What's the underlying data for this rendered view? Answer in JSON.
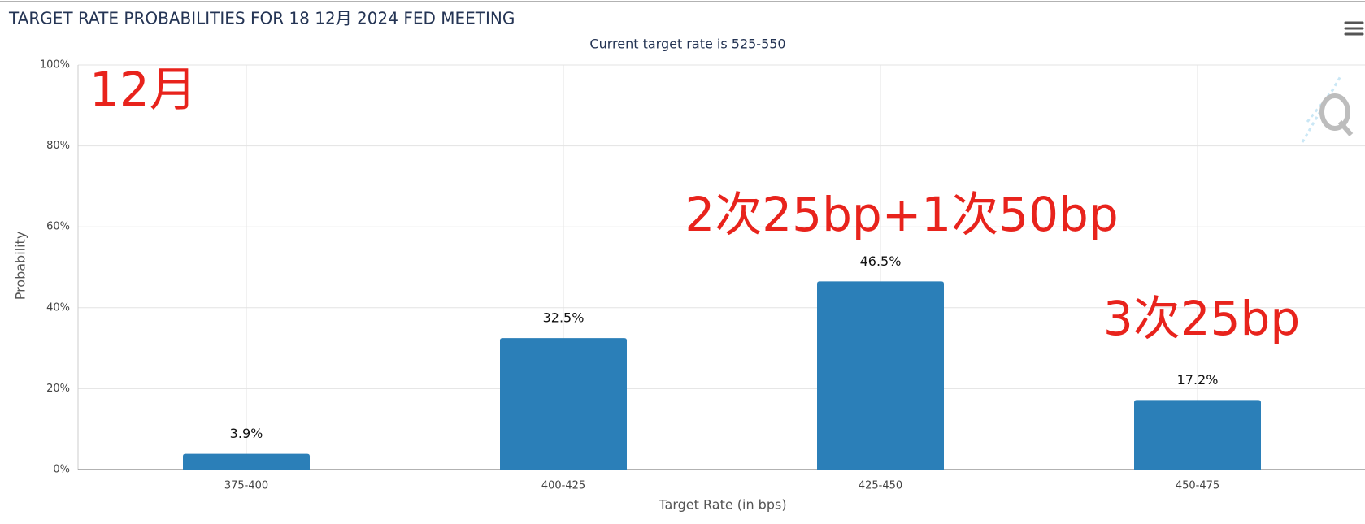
{
  "chart_data": {
    "type": "bar",
    "title": "TARGET RATE PROBABILITIES FOR 18 12月 2024 FED MEETING",
    "subtitle": "Current target rate is 525-550",
    "x_label": "Target Rate (in bps)",
    "y_label": "Probability",
    "categories": [
      "375-400",
      "400-425",
      "425-450",
      "450-475"
    ],
    "values": [
      3.9,
      32.5,
      46.5,
      17.2
    ],
    "value_labels": [
      "3.9%",
      "32.5%",
      "46.5%",
      "17.2%"
    ],
    "color": "#2b7fb8",
    "ylim": [
      0,
      100
    ],
    "yticks": [
      {
        "value": 0,
        "label": "0%"
      },
      {
        "value": 20,
        "label": "20%"
      },
      {
        "value": 40,
        "label": "40%"
      },
      {
        "value": 60,
        "label": "60%"
      },
      {
        "value": 80,
        "label": "80%"
      },
      {
        "value": 100,
        "label": "100%"
      }
    ],
    "grid": true,
    "annotations": [
      "12月",
      "2次25bp+1次50bp",
      "3次25bp"
    ]
  }
}
